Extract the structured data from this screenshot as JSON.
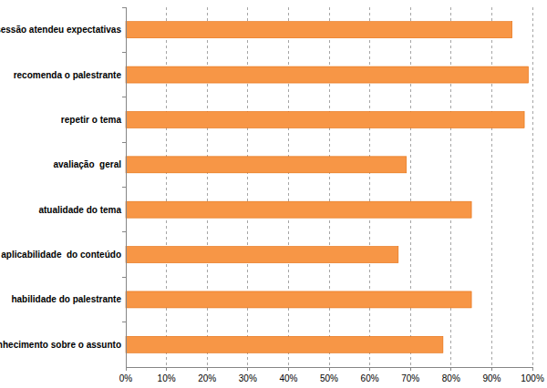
{
  "chart_data": {
    "type": "bar",
    "orientation": "horizontal",
    "categories": [
      "a sessão atendeu expectativas",
      "recomenda o palestrante",
      "repetir o tema",
      "avaliação  geral",
      "atualidade do tema",
      "aplicabilidade  do conteúdo",
      "habilidade do palestrante",
      "conhecimento sobre o assunto"
    ],
    "values": [
      95,
      99,
      98,
      69,
      85,
      67,
      85,
      78
    ],
    "color": "#f79646",
    "xlim": [
      0,
      100
    ],
    "xticks": [
      {
        "value": 0,
        "label": "0%"
      },
      {
        "value": 10,
        "label": "10%"
      },
      {
        "value": 20,
        "label": "20%"
      },
      {
        "value": 30,
        "label": "30%"
      },
      {
        "value": 40,
        "label": "40%"
      },
      {
        "value": 50,
        "label": "50%"
      },
      {
        "value": 60,
        "label": "60%"
      },
      {
        "value": 70,
        "label": "70%"
      },
      {
        "value": 80,
        "label": "80%"
      },
      {
        "value": 90,
        "label": "90%"
      },
      {
        "value": 100,
        "label": "100%"
      }
    ],
    "grid": true
  }
}
